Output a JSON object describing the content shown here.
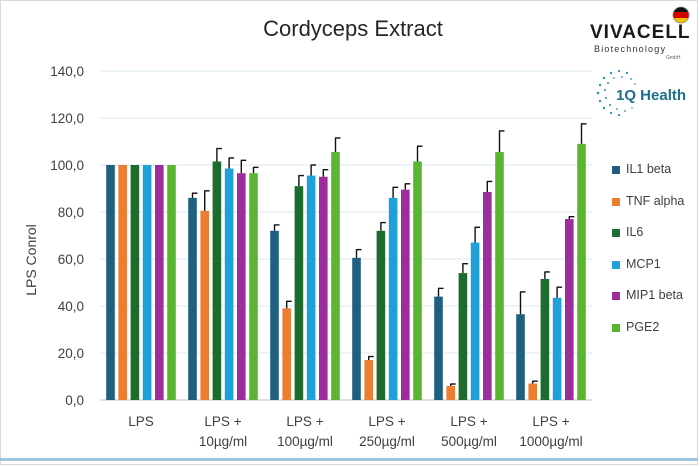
{
  "chart_data": {
    "type": "bar",
    "title": "Cordyceps Extract",
    "xlabel": "",
    "ylabel": "LPS Conrol",
    "ylim": [
      0,
      140
    ],
    "yticks": [
      "0,0",
      "20,0",
      "40,0",
      "60,0",
      "80,0",
      "100,0",
      "120,0",
      "140,0"
    ],
    "grid": true,
    "legend_position": "right",
    "categories": [
      [
        "LPS",
        ""
      ],
      [
        "LPS +",
        "10µg/ml"
      ],
      [
        "LPS +",
        "100µg/ml"
      ],
      [
        "LPS +",
        "250µg/ml"
      ],
      [
        "LPS +",
        "500µg/ml"
      ],
      [
        "LPS +",
        "1000µg/ml"
      ]
    ],
    "series": [
      {
        "name": "IL1 beta",
        "color": "#1f5f7f",
        "values": [
          100,
          86,
          72,
          60.5,
          44,
          36.5
        ],
        "errors": [
          0,
          2,
          2.5,
          3.5,
          3.5,
          9.5
        ]
      },
      {
        "name": "TNF alpha",
        "color": "#ed7d31",
        "values": [
          100,
          80.5,
          39,
          17,
          6,
          7
        ],
        "errors": [
          0,
          8.5,
          3,
          1.5,
          0.8,
          1
        ]
      },
      {
        "name": "IL6",
        "color": "#1e6b2e",
        "values": [
          100,
          101.5,
          91,
          72,
          54,
          51.5
        ],
        "errors": [
          0,
          5.5,
          4.5,
          3.5,
          4,
          3
        ]
      },
      {
        "name": "MCP1",
        "color": "#1fa0d8",
        "values": [
          100,
          98.5,
          95.5,
          86,
          67,
          43.5
        ],
        "errors": [
          0,
          4.5,
          4.5,
          4.5,
          6.5,
          4.5
        ]
      },
      {
        "name": "MIP1 beta",
        "color": "#9b2d9c",
        "values": [
          100,
          96.5,
          95,
          89.5,
          88.5,
          77
        ],
        "errors": [
          0,
          5.5,
          3,
          2.5,
          4.5,
          1
        ]
      },
      {
        "name": "PGE2",
        "color": "#5ab531",
        "values": [
          100,
          96.5,
          105.5,
          101.5,
          105.5,
          109
        ],
        "errors": [
          0,
          2.5,
          6,
          6.5,
          9,
          8.5
        ]
      }
    ]
  },
  "logos": {
    "vivacell_name": "VIVACELL",
    "vivacell_sub": "Biotechnology",
    "vivacell_gmbh": "GmbH",
    "iq_name": "1Q Health"
  }
}
